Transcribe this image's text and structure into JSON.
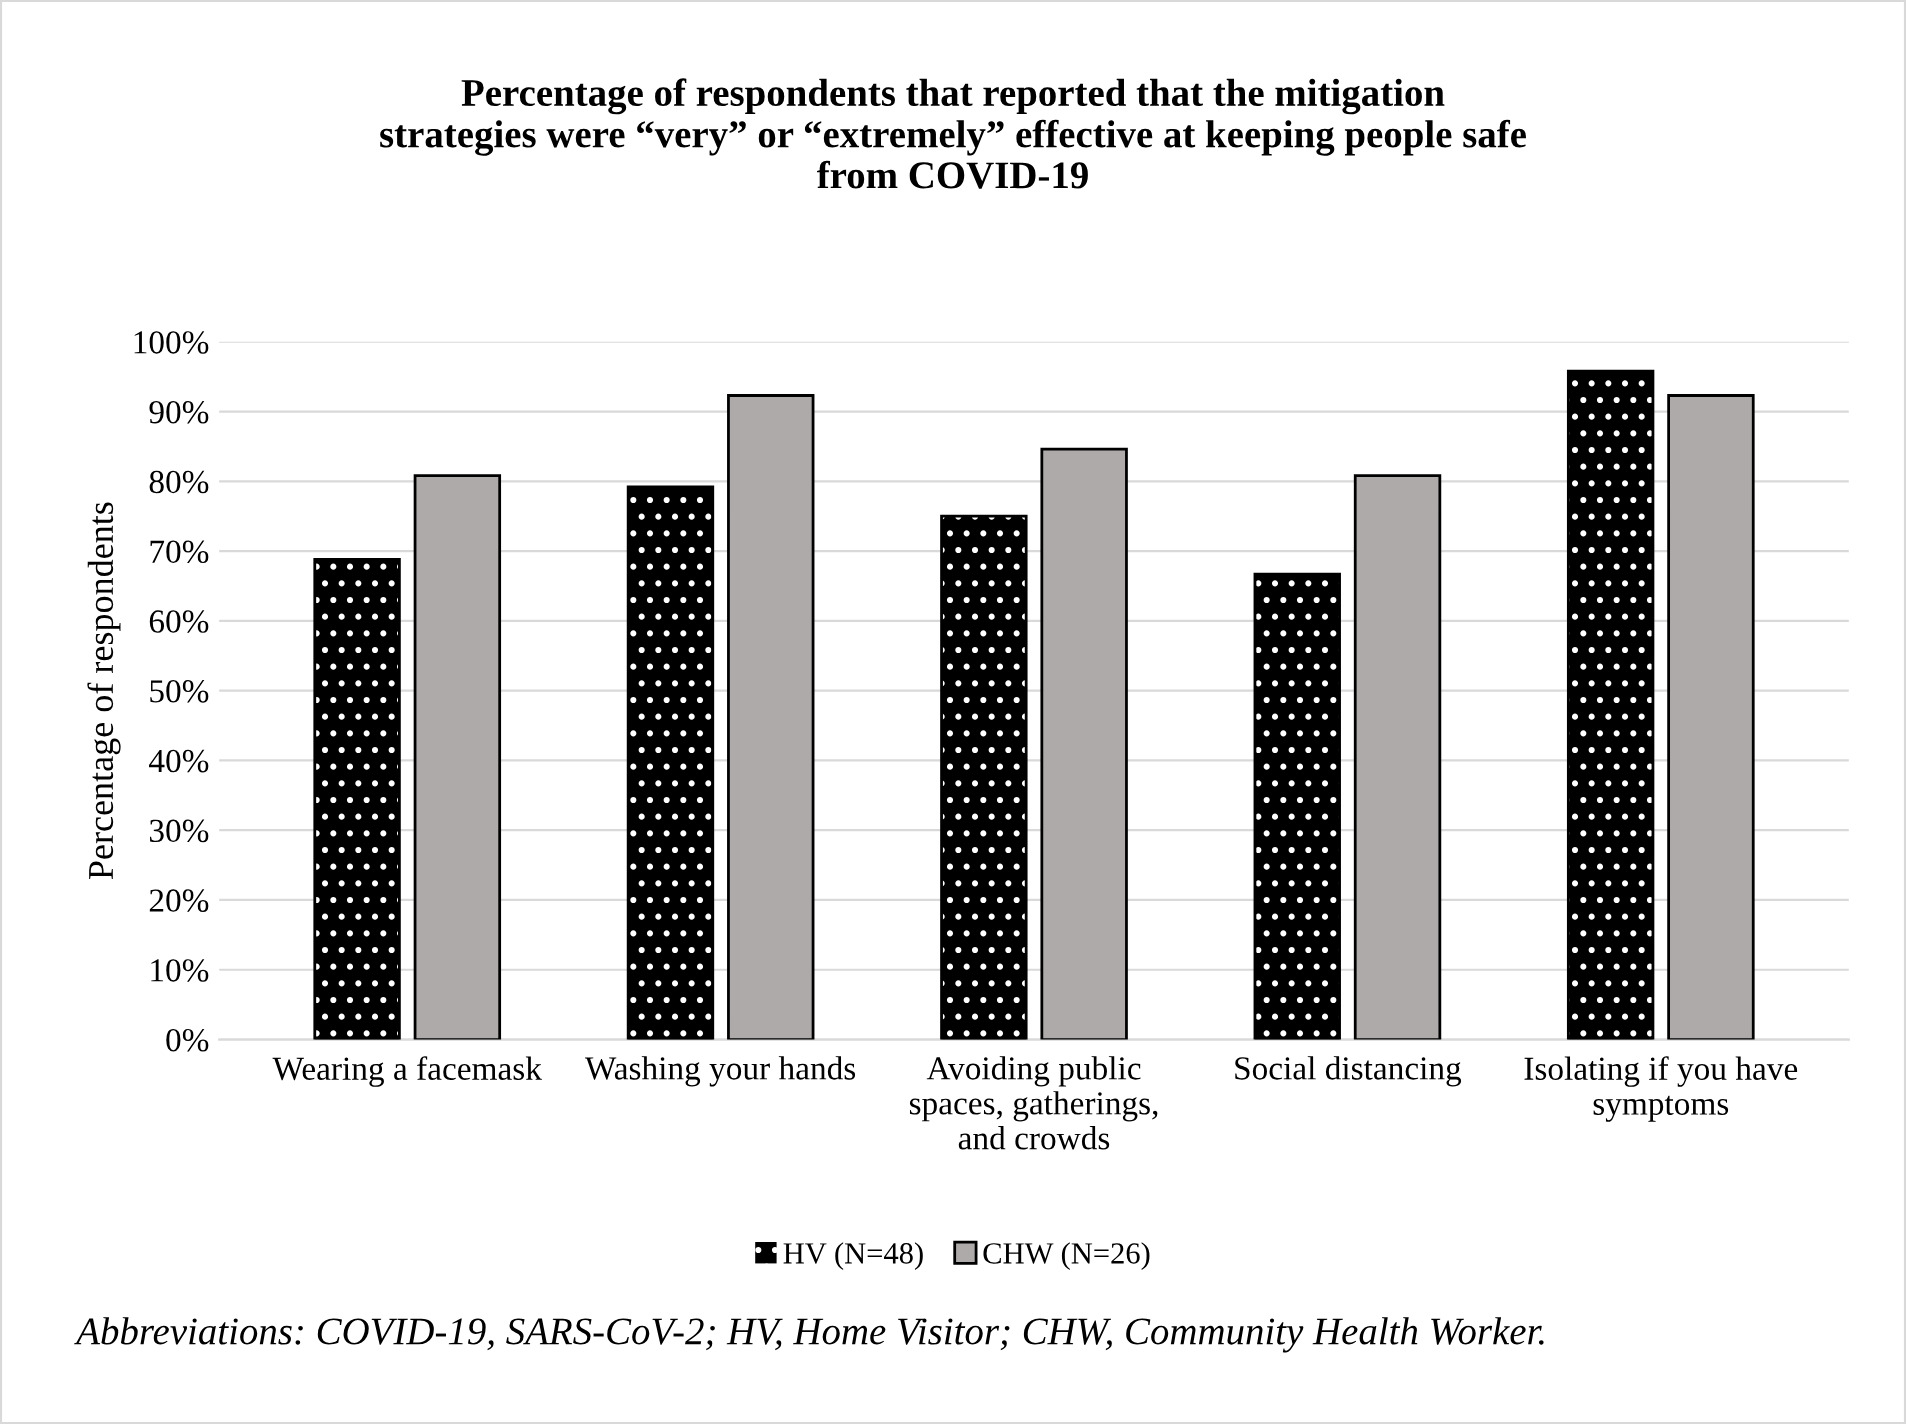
{
  "chart_data": {
    "type": "bar",
    "title": "Percentage of respondents that reported that the mitigation\nstrategies were “very” or “extremely” effective at keeping people safe\nfrom COVID-19",
    "ylabel": "Percentage of respondents",
    "categories": [
      "Wearing a facemask",
      "Washing your hands",
      "Avoiding public\nspaces, gatherings,\nand crowds",
      "Social distancing",
      "Isolating if you have\nsymptoms"
    ],
    "series": [
      {
        "name": "HV (N=48)",
        "color": "#000000",
        "values": [
          68.8,
          79.2,
          75,
          66.7,
          95.8
        ]
      },
      {
        "name": "CHW (N=26)",
        "color": "#aeaaaa",
        "values": [
          80.8,
          92.3,
          84.6,
          80.8,
          92.3
        ]
      }
    ],
    "ylim": [
      0,
      100
    ],
    "yticks": [
      {
        "value": 0,
        "label": "0%"
      },
      {
        "value": 10,
        "label": "10%"
      },
      {
        "value": 20,
        "label": "20%"
      },
      {
        "value": 30,
        "label": "30%"
      },
      {
        "value": 40,
        "label": "40%"
      },
      {
        "value": 50,
        "label": "50%"
      },
      {
        "value": 60,
        "label": "60%"
      },
      {
        "value": 70,
        "label": "70%"
      },
      {
        "value": 80,
        "label": "80%"
      },
      {
        "value": 90,
        "label": "90%"
      },
      {
        "value": 100,
        "label": "100%"
      }
    ],
    "grid": "y",
    "legend": "bottom",
    "annotations": [
      "Abbreviations: COVID-19, SARS-CoV-2; HV, Home Visitor; CHW, Community Health Worker."
    ]
  }
}
